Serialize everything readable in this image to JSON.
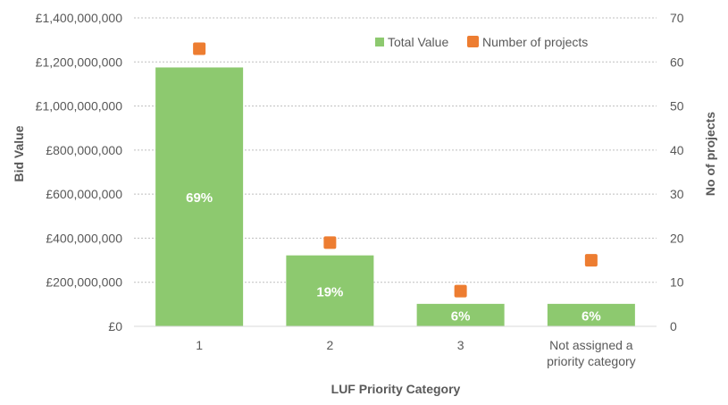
{
  "chart_data": {
    "type": "bar",
    "categories": [
      "1",
      "2",
      "3",
      "Not assigned a priority category"
    ],
    "category_label_lines": [
      [
        "1"
      ],
      [
        "2"
      ],
      [
        "3"
      ],
      [
        "Not assigned a",
        "priority category"
      ]
    ],
    "xlabel": "LUF Priority Category",
    "ylabel": "Bid Value",
    "y2label": "No of projects",
    "ylim": [
      0,
      1400000000
    ],
    "y2lim": [
      0,
      70
    ],
    "yticks": [
      "£0",
      "£200,000,000",
      "£400,000,000",
      "£600,000,000",
      "£800,000,000",
      "£1,000,000,000",
      "£1,200,000,000",
      "£1,400,000,000"
    ],
    "y2ticks": [
      "0",
      "10",
      "20",
      "30",
      "40",
      "50",
      "60",
      "70"
    ],
    "grid": true,
    "legend_position": "top-right",
    "series": [
      {
        "name": "Total Value",
        "type": "bar",
        "axis": "left",
        "color": "#8dc96f",
        "values": [
          1175000000,
          322000000,
          102000000,
          102000000
        ],
        "data_labels": [
          "69%",
          "19%",
          "6%",
          "6%"
        ]
      },
      {
        "name": "Number of projects",
        "type": "scatter",
        "axis": "right",
        "color": "#ed7d31",
        "values": [
          63,
          19,
          8,
          15
        ]
      }
    ]
  }
}
